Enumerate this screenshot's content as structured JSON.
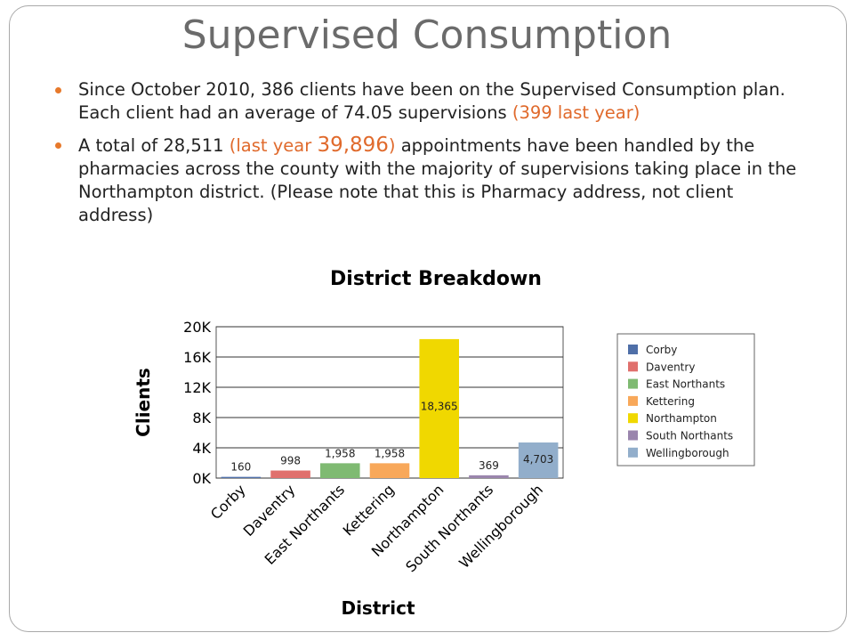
{
  "slide": {
    "title": "Supervised Consumption",
    "bullets": [
      {
        "text1": "Since October 2010, 386 clients have been on the Supervised Consumption plan. Each client had an average of 74.05 supervisions ",
        "accent": "(399 last year)"
      },
      {
        "text1": "A total of 28,511 ",
        "accent1": "(last year ",
        "accent_big": "39,896",
        "accent2": ")",
        "text2": " appointments have been handled by the pharmacies across the county with the majority of supervisions taking place in the Northampton district. (Please note that this is Pharmacy address, not client address)"
      }
    ]
  },
  "chart_data": {
    "type": "bar",
    "title": "District Breakdown",
    "xlabel": "District",
    "ylabel": "Clients",
    "ylim": [
      0,
      20000
    ],
    "yticks": [
      {
        "value": 0,
        "label": "0K"
      },
      {
        "value": 4000,
        "label": "4K"
      },
      {
        "value": 8000,
        "label": "8K"
      },
      {
        "value": 12000,
        "label": "12K"
      },
      {
        "value": 16000,
        "label": "16K"
      },
      {
        "value": 20000,
        "label": "20K"
      }
    ],
    "grid": true,
    "legend_position": "right",
    "categories": [
      "Corby",
      "Daventry",
      "East Northants",
      "Kettering",
      "Northampton",
      "South Northants",
      "Wellingborough"
    ],
    "values": [
      160,
      998,
      1958,
      1958,
      18365,
      369,
      4703
    ],
    "value_labels": [
      "160",
      "998",
      "1,958",
      "1,958",
      "18,365",
      "369",
      "4,703"
    ],
    "colors": [
      "#4f6fa8",
      "#e0706d",
      "#7fba72",
      "#f8a85a",
      "#f0d800",
      "#9a85ad",
      "#92aecb"
    ]
  }
}
